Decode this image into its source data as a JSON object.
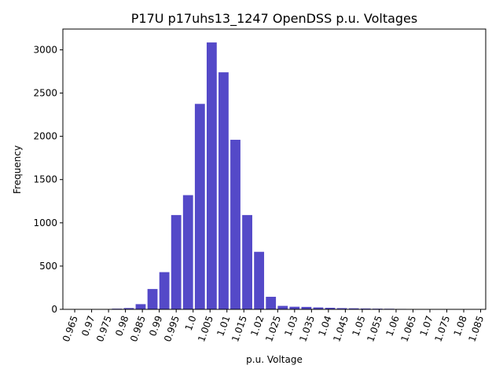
{
  "chart_data": {
    "type": "bar",
    "title": "P17U p17uhs13_1247  OpenDSS p.u. Voltages",
    "xlabel": "p.u. Voltage",
    "ylabel": "Frequency",
    "xlim": [
      0.9615,
      1.0865
    ],
    "ylim": [
      0,
      3240
    ],
    "bin_width": 0.0035,
    "colors": {
      "bar": "#5449c8",
      "axis": "#000000"
    },
    "x_ticks": [
      "0.965",
      "0.97",
      "0.975",
      "0.98",
      "0.985",
      "0.99",
      "0.995",
      "1.0",
      "1.005",
      "1.01",
      "1.015",
      "1.02",
      "1.025",
      "1.03",
      "1.035",
      "1.04",
      "1.045",
      "1.05",
      "1.055",
      "1.06",
      "1.065",
      "1.07",
      "1.075",
      "1.08",
      "1.085"
    ],
    "y_ticks": [
      "0",
      "500",
      "1000",
      "1500",
      "2000",
      "2500",
      "3000"
    ],
    "bins": [
      {
        "x": 0.9775,
        "value": 8
      },
      {
        "x": 0.981,
        "value": 15
      },
      {
        "x": 0.9845,
        "value": 60
      },
      {
        "x": 0.988,
        "value": 235
      },
      {
        "x": 0.9915,
        "value": 430
      },
      {
        "x": 0.995,
        "value": 1090
      },
      {
        "x": 0.9985,
        "value": 1320
      },
      {
        "x": 1.002,
        "value": 2375
      },
      {
        "x": 1.0055,
        "value": 3085
      },
      {
        "x": 1.009,
        "value": 2740
      },
      {
        "x": 1.0125,
        "value": 1960
      },
      {
        "x": 1.016,
        "value": 1090
      },
      {
        "x": 1.0195,
        "value": 665
      },
      {
        "x": 1.023,
        "value": 145
      },
      {
        "x": 1.0265,
        "value": 40
      },
      {
        "x": 1.03,
        "value": 30
      },
      {
        "x": 1.0335,
        "value": 28
      },
      {
        "x": 1.037,
        "value": 22
      },
      {
        "x": 1.0405,
        "value": 18
      },
      {
        "x": 1.044,
        "value": 14
      },
      {
        "x": 1.0475,
        "value": 12
      },
      {
        "x": 1.051,
        "value": 10
      },
      {
        "x": 1.0545,
        "value": 8
      },
      {
        "x": 1.058,
        "value": 7
      },
      {
        "x": 1.0615,
        "value": 5
      },
      {
        "x": 1.065,
        "value": 4
      },
      {
        "x": 1.0685,
        "value": 2
      }
    ]
  }
}
